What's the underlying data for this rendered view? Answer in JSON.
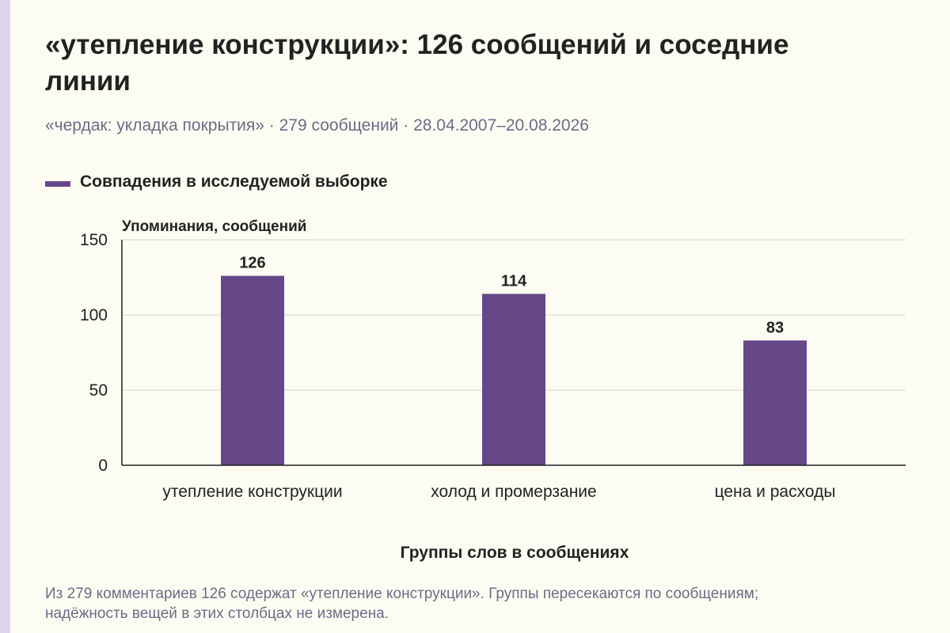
{
  "header": {
    "title": "«утепление конструкции»: 126 сообщений и соседние линии",
    "subtitle": "«чердак: укладка покрытия» · 279 сообщений · 28.04.2007–20.08.2026"
  },
  "legend": {
    "label": "Совпадения в исследуемой выборке"
  },
  "footnote": "Из 279 комментариев 126 содержат «утепление конструкции». Группы пересекаются по сообщениям; надёжность вещей в этих столбцах не измерена.",
  "colors": {
    "bar": "#664788",
    "background": "#fdfcf3",
    "accent_strip": "#dcd4ec",
    "muted_text": "#6f6a86",
    "grid": "#d6d4cc"
  },
  "chart_data": {
    "type": "bar",
    "title": "«утепление конструкции»: 126 сообщений и соседние линии",
    "subtitle": "«чердак: укладка покрытия» · 279 сообщений · 28.04.2007–20.08.2026",
    "categories": [
      "утепление конструкции",
      "холод и промерзание",
      "цена и расходы"
    ],
    "series": [
      {
        "name": "Совпадения в исследуемой выборке",
        "values": [
          126,
          114,
          83
        ]
      }
    ],
    "data_labels": [
      "126",
      "114",
      "83"
    ],
    "xlabel": "Группы слов в сообщениях",
    "ylabel": "Упоминания, сообщений",
    "ylim": [
      0,
      150
    ],
    "yticks": [
      0,
      50,
      100,
      150
    ],
    "ytick_labels": [
      "0",
      "50",
      "100",
      "150"
    ],
    "grid": true,
    "legend_position": "top-left"
  }
}
